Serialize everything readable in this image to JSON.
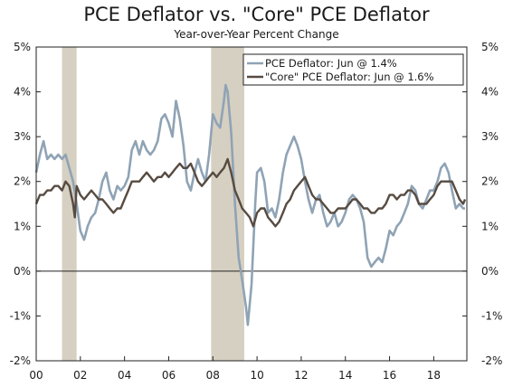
{
  "chart_data": {
    "type": "line",
    "title": "PCE Deflator vs. \"Core\" PCE Deflator",
    "subtitle": "Year-over-Year Percent Change",
    "ylim": [
      -2,
      5
    ],
    "xlim": [
      2000,
      2019.5
    ],
    "y_ticks": [
      -2,
      -1,
      0,
      1,
      2,
      3,
      4,
      5
    ],
    "y_tick_labels": [
      "-2%",
      "-1%",
      "0%",
      "1%",
      "2%",
      "3%",
      "4%",
      "5%"
    ],
    "x_ticks": [
      2000,
      2002,
      2004,
      2006,
      2008,
      2010,
      2012,
      2014,
      2016,
      2018
    ],
    "x_tick_labels": [
      "00",
      "02",
      "04",
      "06",
      "08",
      "10",
      "12",
      "14",
      "16",
      "18"
    ],
    "legend_position": "top-right",
    "recessions": [
      {
        "start": 2001.17,
        "end": 2001.83
      },
      {
        "start": 2007.92,
        "end": 2009.42
      }
    ],
    "series": [
      {
        "name": "PCE Deflator: Jun @ 1.4%",
        "color": "#8fa3b5",
        "points": [
          [
            2000.0,
            2.2
          ],
          [
            2000.17,
            2.6
          ],
          [
            2000.33,
            2.9
          ],
          [
            2000.5,
            2.5
          ],
          [
            2000.67,
            2.6
          ],
          [
            2000.83,
            2.5
          ],
          [
            2001.0,
            2.6
          ],
          [
            2001.17,
            2.5
          ],
          [
            2001.33,
            2.6
          ],
          [
            2001.5,
            2.3
          ],
          [
            2001.67,
            2.0
          ],
          [
            2001.83,
            1.5
          ],
          [
            2002.0,
            0.9
          ],
          [
            2002.17,
            0.7
          ],
          [
            2002.33,
            1.0
          ],
          [
            2002.5,
            1.2
          ],
          [
            2002.67,
            1.3
          ],
          [
            2002.83,
            1.6
          ],
          [
            2003.0,
            2.0
          ],
          [
            2003.17,
            2.2
          ],
          [
            2003.33,
            1.8
          ],
          [
            2003.5,
            1.6
          ],
          [
            2003.67,
            1.9
          ],
          [
            2003.83,
            1.8
          ],
          [
            2004.0,
            1.9
          ],
          [
            2004.17,
            2.1
          ],
          [
            2004.33,
            2.7
          ],
          [
            2004.5,
            2.9
          ],
          [
            2004.67,
            2.6
          ],
          [
            2004.83,
            2.9
          ],
          [
            2005.0,
            2.7
          ],
          [
            2005.17,
            2.6
          ],
          [
            2005.33,
            2.7
          ],
          [
            2005.5,
            2.9
          ],
          [
            2005.67,
            3.4
          ],
          [
            2005.83,
            3.5
          ],
          [
            2006.0,
            3.3
          ],
          [
            2006.17,
            3.0
          ],
          [
            2006.33,
            3.8
          ],
          [
            2006.5,
            3.4
          ],
          [
            2006.67,
            2.8
          ],
          [
            2006.83,
            2.0
          ],
          [
            2007.0,
            1.8
          ],
          [
            2007.17,
            2.2
          ],
          [
            2007.33,
            2.5
          ],
          [
            2007.5,
            2.2
          ],
          [
            2007.67,
            2.0
          ],
          [
            2007.83,
            2.6
          ],
          [
            2008.0,
            3.5
          ],
          [
            2008.17,
            3.3
          ],
          [
            2008.33,
            3.2
          ],
          [
            2008.5,
            3.8
          ],
          [
            2008.58,
            4.15
          ],
          [
            2008.67,
            4.0
          ],
          [
            2008.83,
            3.1
          ],
          [
            2009.0,
            1.5
          ],
          [
            2009.17,
            0.3
          ],
          [
            2009.33,
            -0.2
          ],
          [
            2009.5,
            -0.8
          ],
          [
            2009.58,
            -1.2
          ],
          [
            2009.75,
            -0.3
          ],
          [
            2009.92,
            1.5
          ],
          [
            2010.0,
            2.2
          ],
          [
            2010.17,
            2.3
          ],
          [
            2010.33,
            2.0
          ],
          [
            2010.5,
            1.3
          ],
          [
            2010.67,
            1.4
          ],
          [
            2010.83,
            1.2
          ],
          [
            2011.0,
            1.6
          ],
          [
            2011.17,
            2.2
          ],
          [
            2011.33,
            2.6
          ],
          [
            2011.5,
            2.8
          ],
          [
            2011.67,
            3.0
          ],
          [
            2011.83,
            2.8
          ],
          [
            2012.0,
            2.5
          ],
          [
            2012.17,
            2.0
          ],
          [
            2012.33,
            1.6
          ],
          [
            2012.5,
            1.3
          ],
          [
            2012.67,
            1.6
          ],
          [
            2012.83,
            1.7
          ],
          [
            2013.0,
            1.3
          ],
          [
            2013.17,
            1.0
          ],
          [
            2013.33,
            1.1
          ],
          [
            2013.5,
            1.3
          ],
          [
            2013.67,
            1.0
          ],
          [
            2013.83,
            1.1
          ],
          [
            2014.0,
            1.3
          ],
          [
            2014.17,
            1.6
          ],
          [
            2014.33,
            1.7
          ],
          [
            2014.5,
            1.6
          ],
          [
            2014.67,
            1.4
          ],
          [
            2014.83,
            1.1
          ],
          [
            2015.0,
            0.3
          ],
          [
            2015.17,
            0.1
          ],
          [
            2015.33,
            0.2
          ],
          [
            2015.5,
            0.3
          ],
          [
            2015.67,
            0.2
          ],
          [
            2015.83,
            0.5
          ],
          [
            2016.0,
            0.9
          ],
          [
            2016.17,
            0.8
          ],
          [
            2016.33,
            1.0
          ],
          [
            2016.5,
            1.1
          ],
          [
            2016.67,
            1.3
          ],
          [
            2016.83,
            1.5
          ],
          [
            2017.0,
            1.9
          ],
          [
            2017.17,
            1.8
          ],
          [
            2017.33,
            1.5
          ],
          [
            2017.5,
            1.4
          ],
          [
            2017.67,
            1.6
          ],
          [
            2017.83,
            1.8
          ],
          [
            2018.0,
            1.8
          ],
          [
            2018.17,
            2.0
          ],
          [
            2018.33,
            2.3
          ],
          [
            2018.5,
            2.4
          ],
          [
            2018.67,
            2.2
          ],
          [
            2018.83,
            1.8
          ],
          [
            2019.0,
            1.4
          ],
          [
            2019.17,
            1.5
          ],
          [
            2019.33,
            1.4
          ],
          [
            2019.42,
            1.4
          ]
        ]
      },
      {
        "name": "\"Core\" PCE Deflator: Jun @ 1.6%",
        "color": "#574b41",
        "points": [
          [
            2000.0,
            1.5
          ],
          [
            2000.17,
            1.7
          ],
          [
            2000.33,
            1.7
          ],
          [
            2000.5,
            1.8
          ],
          [
            2000.67,
            1.8
          ],
          [
            2000.83,
            1.9
          ],
          [
            2001.0,
            1.9
          ],
          [
            2001.17,
            1.8
          ],
          [
            2001.33,
            2.0
          ],
          [
            2001.5,
            1.9
          ],
          [
            2001.67,
            1.5
          ],
          [
            2001.75,
            1.2
          ],
          [
            2001.83,
            1.9
          ],
          [
            2002.0,
            1.7
          ],
          [
            2002.17,
            1.6
          ],
          [
            2002.33,
            1.7
          ],
          [
            2002.5,
            1.8
          ],
          [
            2002.67,
            1.7
          ],
          [
            2002.83,
            1.6
          ],
          [
            2003.0,
            1.6
          ],
          [
            2003.17,
            1.5
          ],
          [
            2003.33,
            1.4
          ],
          [
            2003.5,
            1.3
          ],
          [
            2003.67,
            1.4
          ],
          [
            2003.83,
            1.4
          ],
          [
            2004.0,
            1.6
          ],
          [
            2004.17,
            1.8
          ],
          [
            2004.33,
            2.0
          ],
          [
            2004.5,
            2.0
          ],
          [
            2004.67,
            2.0
          ],
          [
            2004.83,
            2.1
          ],
          [
            2005.0,
            2.2
          ],
          [
            2005.17,
            2.1
          ],
          [
            2005.33,
            2.0
          ],
          [
            2005.5,
            2.1
          ],
          [
            2005.67,
            2.1
          ],
          [
            2005.83,
            2.2
          ],
          [
            2006.0,
            2.1
          ],
          [
            2006.17,
            2.2
          ],
          [
            2006.33,
            2.3
          ],
          [
            2006.5,
            2.4
          ],
          [
            2006.67,
            2.3
          ],
          [
            2006.83,
            2.3
          ],
          [
            2007.0,
            2.4
          ],
          [
            2007.17,
            2.2
          ],
          [
            2007.33,
            2.0
          ],
          [
            2007.5,
            1.9
          ],
          [
            2007.67,
            2.0
          ],
          [
            2007.83,
            2.1
          ],
          [
            2008.0,
            2.2
          ],
          [
            2008.17,
            2.1
          ],
          [
            2008.33,
            2.2
          ],
          [
            2008.5,
            2.3
          ],
          [
            2008.67,
            2.5
          ],
          [
            2008.83,
            2.2
          ],
          [
            2009.0,
            1.8
          ],
          [
            2009.17,
            1.6
          ],
          [
            2009.33,
            1.4
          ],
          [
            2009.5,
            1.3
          ],
          [
            2009.67,
            1.2
          ],
          [
            2009.83,
            1.0
          ],
          [
            2010.0,
            1.3
          ],
          [
            2010.17,
            1.4
          ],
          [
            2010.33,
            1.4
          ],
          [
            2010.5,
            1.2
          ],
          [
            2010.67,
            1.1
          ],
          [
            2010.83,
            1.0
          ],
          [
            2011.0,
            1.1
          ],
          [
            2011.17,
            1.3
          ],
          [
            2011.33,
            1.5
          ],
          [
            2011.5,
            1.6
          ],
          [
            2011.67,
            1.8
          ],
          [
            2011.83,
            1.9
          ],
          [
            2012.0,
            2.0
          ],
          [
            2012.17,
            2.1
          ],
          [
            2012.33,
            1.9
          ],
          [
            2012.5,
            1.7
          ],
          [
            2012.67,
            1.6
          ],
          [
            2012.83,
            1.6
          ],
          [
            2013.0,
            1.5
          ],
          [
            2013.17,
            1.4
          ],
          [
            2013.33,
            1.3
          ],
          [
            2013.5,
            1.3
          ],
          [
            2013.67,
            1.4
          ],
          [
            2013.83,
            1.4
          ],
          [
            2014.0,
            1.4
          ],
          [
            2014.17,
            1.5
          ],
          [
            2014.33,
            1.6
          ],
          [
            2014.5,
            1.6
          ],
          [
            2014.67,
            1.5
          ],
          [
            2014.83,
            1.4
          ],
          [
            2015.0,
            1.4
          ],
          [
            2015.17,
            1.3
          ],
          [
            2015.33,
            1.3
          ],
          [
            2015.5,
            1.4
          ],
          [
            2015.67,
            1.4
          ],
          [
            2015.83,
            1.5
          ],
          [
            2016.0,
            1.7
          ],
          [
            2016.17,
            1.7
          ],
          [
            2016.33,
            1.6
          ],
          [
            2016.5,
            1.7
          ],
          [
            2016.67,
            1.7
          ],
          [
            2016.83,
            1.8
          ],
          [
            2017.0,
            1.8
          ],
          [
            2017.17,
            1.7
          ],
          [
            2017.33,
            1.5
          ],
          [
            2017.5,
            1.5
          ],
          [
            2017.67,
            1.5
          ],
          [
            2017.83,
            1.6
          ],
          [
            2018.0,
            1.7
          ],
          [
            2018.17,
            1.9
          ],
          [
            2018.33,
            2.0
          ],
          [
            2018.5,
            2.0
          ],
          [
            2018.67,
            2.0
          ],
          [
            2018.83,
            2.0
          ],
          [
            2019.0,
            1.8
          ],
          [
            2019.17,
            1.6
          ],
          [
            2019.33,
            1.5
          ],
          [
            2019.42,
            1.6
          ]
        ]
      }
    ]
  }
}
